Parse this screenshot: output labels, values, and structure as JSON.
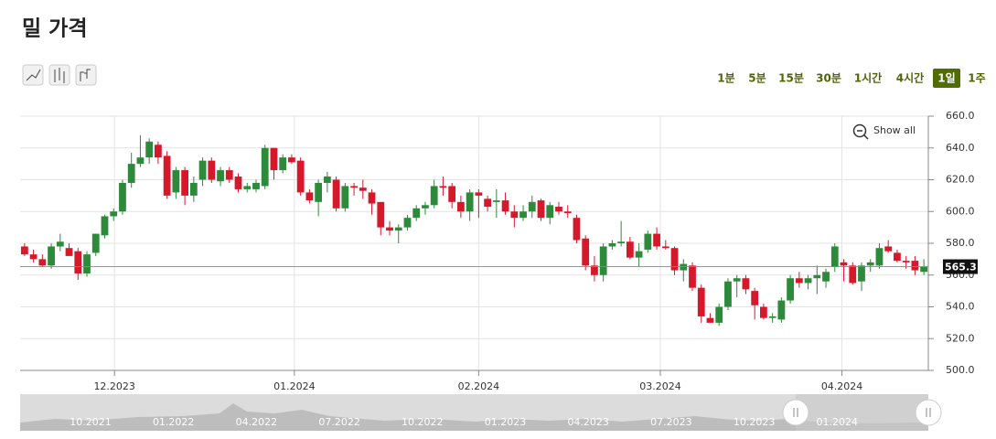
{
  "chart_data": {
    "type": "candlestick",
    "title": "밀 가격",
    "time_ranges": [
      "1분",
      "5분",
      "15분",
      "30분",
      "1시간",
      "4시간",
      "1일",
      "1주"
    ],
    "active_range": 6,
    "show_all": "Show all",
    "up_color": "#2d8a3a",
    "down_color": "#d5192b",
    "ylim": [
      500,
      660
    ],
    "yticks": [
      {
        "value": 500,
        "label": "500.0"
      },
      {
        "value": 520,
        "label": "520.0"
      },
      {
        "value": 540,
        "label": "540.0"
      },
      {
        "value": 560,
        "label": "560.0"
      },
      {
        "value": 580,
        "label": "580.0"
      },
      {
        "value": 600,
        "label": "600.0"
      },
      {
        "value": 620,
        "label": "620.0"
      },
      {
        "value": 640,
        "label": "640.0"
      },
      {
        "value": 660,
        "label": "660.0"
      }
    ],
    "xlim": [
      0,
      102
    ],
    "xticks": [
      {
        "value": 10.6,
        "label": "12.2023"
      },
      {
        "value": 30.8,
        "label": "01.2024"
      },
      {
        "value": 51.5,
        "label": "02.2024"
      },
      {
        "value": 71.9,
        "label": "03.2024"
      },
      {
        "value": 92.3,
        "label": "04.2024"
      }
    ],
    "grid": true,
    "navigator_labels": [
      "10.2021",
      "01.2022",
      "04.2022",
      "07.2022",
      "10.2022",
      "01.2023",
      "04.2023",
      "07.2023",
      "10.2023",
      "01.2024"
    ],
    "ohlc": [
      [
        578,
        580,
        572,
        573
      ],
      [
        573,
        576,
        568,
        570
      ],
      [
        570,
        573,
        565,
        566
      ],
      [
        566,
        580,
        564,
        578
      ],
      [
        578,
        586,
        575,
        581
      ],
      [
        577,
        580,
        572,
        572
      ],
      [
        575,
        577,
        557,
        561
      ],
      [
        561,
        575,
        559,
        573
      ],
      [
        574,
        586,
        572,
        586
      ],
      [
        585,
        598,
        583,
        597
      ],
      [
        597,
        602,
        594,
        600
      ],
      [
        600,
        620,
        598,
        618
      ],
      [
        618,
        637,
        615,
        630
      ],
      [
        630,
        648,
        628,
        634
      ],
      [
        634,
        646,
        630,
        644
      ],
      [
        642,
        644,
        630,
        634
      ],
      [
        635,
        638,
        608,
        610
      ],
      [
        612,
        628,
        608,
        626
      ],
      [
        626,
        628,
        604,
        610
      ],
      [
        610,
        622,
        606,
        618
      ],
      [
        620,
        634,
        616,
        632
      ],
      [
        632,
        634,
        618,
        620
      ],
      [
        619,
        628,
        616,
        626
      ],
      [
        626,
        628,
        618,
        620
      ],
      [
        622,
        624,
        612,
        614
      ],
      [
        614,
        618,
        612,
        616
      ],
      [
        614,
        620,
        612,
        618
      ],
      [
        616,
        642,
        614,
        640
      ],
      [
        640,
        640,
        620,
        626
      ],
      [
        626,
        636,
        624,
        634
      ],
      [
        634,
        636,
        630,
        631
      ],
      [
        632,
        634,
        610,
        612
      ],
      [
        612,
        614,
        605,
        607
      ],
      [
        606,
        620,
        597,
        618
      ],
      [
        618,
        625,
        612,
        622
      ],
      [
        620,
        622,
        600,
        602
      ],
      [
        602,
        618,
        600,
        616
      ],
      [
        616,
        618,
        610,
        615
      ],
      [
        615,
        620,
        608,
        613
      ],
      [
        612,
        614,
        598,
        605
      ],
      [
        606,
        606,
        585,
        590
      ],
      [
        590,
        594,
        585,
        588
      ],
      [
        588,
        592,
        580,
        590
      ],
      [
        590,
        598,
        588,
        596
      ],
      [
        596,
        604,
        594,
        602
      ],
      [
        602,
        606,
        598,
        604
      ],
      [
        604,
        620,
        602,
        616
      ],
      [
        616,
        622,
        610,
        615
      ],
      [
        616,
        618,
        602,
        606
      ],
      [
        606,
        610,
        596,
        600
      ],
      [
        600,
        614,
        594,
        612
      ],
      [
        612,
        614,
        596,
        610
      ],
      [
        608,
        610,
        600,
        603
      ],
      [
        606,
        614,
        596,
        607
      ],
      [
        607,
        612,
        598,
        600
      ],
      [
        600,
        604,
        590,
        596
      ],
      [
        596,
        604,
        594,
        600
      ],
      [
        600,
        610,
        596,
        606
      ],
      [
        607,
        608,
        594,
        596
      ],
      [
        596,
        606,
        592,
        604
      ],
      [
        603,
        606,
        598,
        600
      ],
      [
        600,
        604,
        596,
        599
      ],
      [
        596,
        598,
        580,
        582
      ],
      [
        583,
        585,
        563,
        566
      ],
      [
        566,
        572,
        556,
        560
      ],
      [
        560,
        580,
        556,
        578
      ],
      [
        578,
        582,
        576,
        580
      ],
      [
        580,
        594,
        578,
        581
      ],
      [
        581,
        584,
        570,
        571
      ],
      [
        571,
        580,
        565,
        575
      ],
      [
        576,
        588,
        574,
        586
      ],
      [
        586,
        590,
        576,
        578
      ],
      [
        578,
        582,
        576,
        577
      ],
      [
        577,
        578,
        560,
        563
      ],
      [
        563,
        570,
        556,
        567
      ],
      [
        566,
        568,
        550,
        552
      ],
      [
        552,
        554,
        530,
        534
      ],
      [
        533,
        536,
        530,
        530
      ],
      [
        530,
        542,
        528,
        540
      ],
      [
        540,
        558,
        538,
        556
      ],
      [
        556,
        560,
        546,
        558
      ],
      [
        558,
        560,
        548,
        551
      ],
      [
        550,
        552,
        532,
        541
      ],
      [
        540,
        542,
        532,
        533
      ],
      [
        533,
        536,
        530,
        534
      ],
      [
        532,
        546,
        530,
        544
      ],
      [
        544,
        560,
        542,
        558
      ],
      [
        558,
        562,
        552,
        555
      ],
      [
        555,
        560,
        551,
        558
      ],
      [
        558,
        566,
        548,
        560
      ],
      [
        556,
        564,
        552,
        562
      ],
      [
        565,
        580,
        562,
        578
      ],
      [
        568,
        570,
        556,
        566
      ],
      [
        566,
        568,
        554,
        555
      ],
      [
        556,
        568,
        550,
        566
      ],
      [
        566,
        570,
        562,
        568
      ],
      [
        566,
        580,
        564,
        577
      ],
      [
        578,
        582,
        574,
        575
      ],
      [
        574,
        576,
        568,
        569
      ],
      [
        569,
        572,
        564,
        568
      ],
      [
        569,
        572,
        560,
        563
      ],
      [
        562,
        570,
        560,
        565.3
      ]
    ]
  }
}
